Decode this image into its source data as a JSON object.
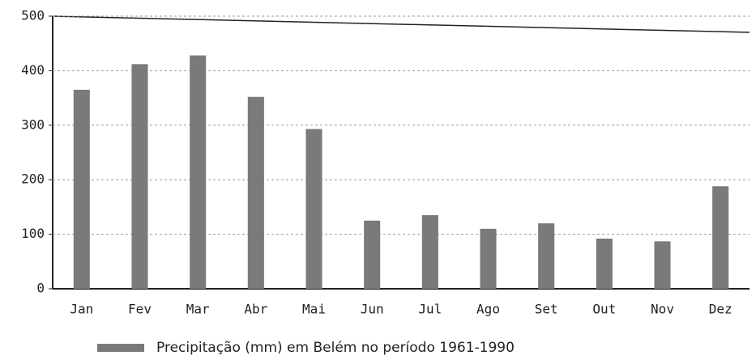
{
  "chart_data": {
    "type": "bar",
    "categories": [
      "Jan",
      "Fev",
      "Mar",
      "Abr",
      "Mai",
      "Jun",
      "Jul",
      "Ago",
      "Set",
      "Out",
      "Nov",
      "Dez"
    ],
    "series": [
      {
        "name": "Precipitação (mm) em Belém no período 1961-1990",
        "color": "#7a7a7a",
        "values": [
          365,
          412,
          428,
          352,
          293,
          125,
          135,
          110,
          120,
          92,
          87,
          188
        ]
      }
    ],
    "ylim": [
      0,
      500
    ],
    "yticks": [
      0,
      100,
      200,
      300,
      400,
      500
    ],
    "grid": true,
    "legend": "bottom"
  }
}
